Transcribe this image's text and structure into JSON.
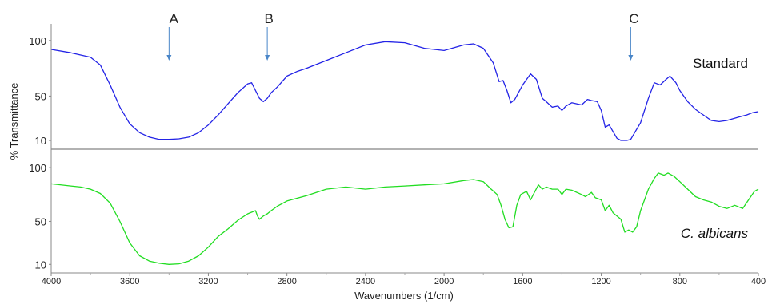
{
  "chart_data": {
    "type": "line",
    "xlabel": "Wavenumbers (1/cm)",
    "ylabel": "% Transmittance",
    "xlim": [
      4000,
      400
    ],
    "x_reversed": true,
    "x_ticks": [
      4000,
      3600,
      3200,
      2800,
      2400,
      2000,
      1600,
      1200,
      800,
      400
    ],
    "y_ticks": [
      10,
      50,
      100
    ],
    "grid": false,
    "panels": [
      {
        "name": "Standard",
        "color": "#2323e6",
        "italic": false,
        "ylim": [
          5,
          115
        ],
        "points": [
          [
            4000,
            92
          ],
          [
            3900,
            89
          ],
          [
            3800,
            85
          ],
          [
            3750,
            78
          ],
          [
            3700,
            60
          ],
          [
            3650,
            40
          ],
          [
            3600,
            25
          ],
          [
            3550,
            17
          ],
          [
            3500,
            13
          ],
          [
            3450,
            11
          ],
          [
            3400,
            11
          ],
          [
            3350,
            11.5
          ],
          [
            3300,
            13
          ],
          [
            3250,
            17
          ],
          [
            3200,
            24
          ],
          [
            3150,
            33
          ],
          [
            3100,
            43
          ],
          [
            3050,
            53
          ],
          [
            3000,
            61
          ],
          [
            2980,
            62
          ],
          [
            2960,
            55
          ],
          [
            2940,
            48
          ],
          [
            2920,
            45
          ],
          [
            2900,
            48
          ],
          [
            2880,
            53
          ],
          [
            2850,
            58
          ],
          [
            2800,
            68
          ],
          [
            2750,
            72
          ],
          [
            2700,
            75
          ],
          [
            2600,
            82
          ],
          [
            2500,
            89
          ],
          [
            2400,
            96
          ],
          [
            2300,
            99
          ],
          [
            2200,
            98
          ],
          [
            2100,
            93
          ],
          [
            2000,
            91
          ],
          [
            1900,
            96
          ],
          [
            1850,
            97
          ],
          [
            1800,
            93
          ],
          [
            1750,
            80
          ],
          [
            1720,
            63
          ],
          [
            1700,
            64
          ],
          [
            1680,
            55
          ],
          [
            1660,
            44
          ],
          [
            1640,
            47
          ],
          [
            1600,
            60
          ],
          [
            1560,
            70
          ],
          [
            1530,
            65
          ],
          [
            1500,
            48
          ],
          [
            1480,
            45
          ],
          [
            1450,
            40
          ],
          [
            1420,
            41
          ],
          [
            1400,
            37
          ],
          [
            1380,
            41
          ],
          [
            1350,
            44
          ],
          [
            1300,
            42
          ],
          [
            1270,
            47
          ],
          [
            1250,
            46
          ],
          [
            1220,
            45
          ],
          [
            1200,
            37
          ],
          [
            1180,
            22
          ],
          [
            1160,
            24
          ],
          [
            1140,
            18
          ],
          [
            1120,
            12
          ],
          [
            1100,
            10
          ],
          [
            1070,
            10
          ],
          [
            1050,
            11
          ],
          [
            1030,
            17
          ],
          [
            1000,
            26
          ],
          [
            960,
            48
          ],
          [
            930,
            62
          ],
          [
            900,
            60
          ],
          [
            870,
            65
          ],
          [
            850,
            68
          ],
          [
            820,
            62
          ],
          [
            800,
            55
          ],
          [
            760,
            45
          ],
          [
            720,
            38
          ],
          [
            680,
            33
          ],
          [
            640,
            28
          ],
          [
            600,
            27
          ],
          [
            560,
            28
          ],
          [
            500,
            31
          ],
          [
            460,
            33
          ],
          [
            430,
            35
          ],
          [
            400,
            36
          ]
        ]
      },
      {
        "name": "C. albicans",
        "color": "#22dd22",
        "italic": true,
        "ylim": [
          5,
          115
        ],
        "points": [
          [
            4000,
            85
          ],
          [
            3900,
            83
          ],
          [
            3850,
            82
          ],
          [
            3800,
            80
          ],
          [
            3750,
            76
          ],
          [
            3700,
            67
          ],
          [
            3650,
            50
          ],
          [
            3600,
            30
          ],
          [
            3550,
            18
          ],
          [
            3500,
            13
          ],
          [
            3450,
            11
          ],
          [
            3400,
            10
          ],
          [
            3350,
            10.5
          ],
          [
            3300,
            13
          ],
          [
            3250,
            18
          ],
          [
            3200,
            26
          ],
          [
            3150,
            36
          ],
          [
            3100,
            43
          ],
          [
            3050,
            51
          ],
          [
            3000,
            57
          ],
          [
            2960,
            60
          ],
          [
            2950,
            55
          ],
          [
            2940,
            52
          ],
          [
            2920,
            55
          ],
          [
            2900,
            57
          ],
          [
            2880,
            60
          ],
          [
            2850,
            64
          ],
          [
            2800,
            69
          ],
          [
            2700,
            74
          ],
          [
            2600,
            80
          ],
          [
            2500,
            82
          ],
          [
            2400,
            80
          ],
          [
            2300,
            82
          ],
          [
            2200,
            83
          ],
          [
            2100,
            84
          ],
          [
            2000,
            85
          ],
          [
            1900,
            88
          ],
          [
            1850,
            89
          ],
          [
            1800,
            87
          ],
          [
            1760,
            80
          ],
          [
            1730,
            75
          ],
          [
            1710,
            65
          ],
          [
            1690,
            52
          ],
          [
            1670,
            44
          ],
          [
            1650,
            45
          ],
          [
            1630,
            65
          ],
          [
            1610,
            75
          ],
          [
            1580,
            78
          ],
          [
            1560,
            70
          ],
          [
            1540,
            77
          ],
          [
            1520,
            84
          ],
          [
            1500,
            80
          ],
          [
            1480,
            82
          ],
          [
            1450,
            80
          ],
          [
            1420,
            80
          ],
          [
            1400,
            75
          ],
          [
            1380,
            80
          ],
          [
            1350,
            79
          ],
          [
            1300,
            75
          ],
          [
            1280,
            73
          ],
          [
            1250,
            77
          ],
          [
            1230,
            72
          ],
          [
            1200,
            70
          ],
          [
            1180,
            60
          ],
          [
            1160,
            65
          ],
          [
            1140,
            58
          ],
          [
            1120,
            55
          ],
          [
            1100,
            52
          ],
          [
            1080,
            40
          ],
          [
            1060,
            42
          ],
          [
            1040,
            40
          ],
          [
            1020,
            45
          ],
          [
            1000,
            60
          ],
          [
            960,
            80
          ],
          [
            930,
            90
          ],
          [
            910,
            95
          ],
          [
            880,
            93
          ],
          [
            860,
            95
          ],
          [
            830,
            92
          ],
          [
            800,
            87
          ],
          [
            760,
            80
          ],
          [
            720,
            73
          ],
          [
            680,
            70
          ],
          [
            640,
            68
          ],
          [
            600,
            64
          ],
          [
            560,
            62
          ],
          [
            520,
            65
          ],
          [
            480,
            62
          ],
          [
            450,
            70
          ],
          [
            420,
            78
          ],
          [
            400,
            80
          ]
        ]
      }
    ],
    "annotations": [
      {
        "label": "A",
        "x": 3400
      },
      {
        "label": "B",
        "x": 2900
      },
      {
        "label": "C",
        "x": 1050
      }
    ]
  }
}
